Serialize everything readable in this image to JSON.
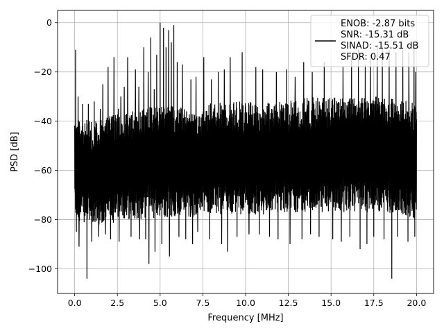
{
  "chart_data": {
    "type": "line",
    "xlabel": "Frequency [MHz]",
    "ylabel": "PSD [dB]",
    "xlim": [
      -1.0,
      21.0
    ],
    "ylim": [
      -110.0,
      5.0
    ],
    "x_ticks": [
      0.0,
      2.5,
      5.0,
      7.5,
      10.0,
      12.5,
      15.0,
      17.5,
      20.0
    ],
    "x_tick_labels": [
      "0.0",
      "2.5",
      "5.0",
      "7.5",
      "10.0",
      "12.5",
      "15.0",
      "17.5",
      "20.0"
    ],
    "y_ticks": [
      0,
      -20,
      -40,
      -60,
      -80,
      -100
    ],
    "y_tick_labels": [
      "0",
      "−20",
      "−40",
      "−60",
      "−80",
      "−100"
    ],
    "grid": true,
    "legend_placement": "top-right",
    "legend_lines": [
      "ENOB: -2.87 bits",
      "SNR: -15.31 dB",
      "SINAD: -15.51 dB",
      "SFDR: 0.47"
    ],
    "line_color": "#000000",
    "series": [
      {
        "noise_band": {
          "x": [
            0.0,
            1.0,
            2.0,
            3.0,
            4.0,
            5.0,
            6.0,
            7.0,
            7.4,
            8.0,
            9.0,
            10.0,
            11.0,
            12.0,
            13.0,
            14.0,
            15.0,
            16.0,
            17.0,
            18.0,
            19.0,
            20.0
          ],
          "upper": [
            -38,
            -40,
            -38,
            -36,
            -34,
            -33,
            -34,
            -36,
            -37,
            -32,
            -32,
            -32,
            -32,
            -31,
            -31,
            -30,
            -30,
            -30,
            -30,
            -30,
            -31,
            -33
          ],
          "lower": [
            -80,
            -82,
            -82,
            -80,
            -80,
            -79,
            -79,
            -79,
            -76,
            -78,
            -78,
            -78,
            -78,
            -77,
            -77,
            -77,
            -77,
            -77,
            -77,
            -77,
            -78,
            -80
          ]
        },
        "peaks": [
          {
            "x": 0.05,
            "y": -11
          },
          {
            "x": 0.2,
            "y": -30
          },
          {
            "x": 0.45,
            "y": -33
          },
          {
            "x": 0.8,
            "y": -33
          },
          {
            "x": 1.15,
            "y": -32
          },
          {
            "x": 1.5,
            "y": -35
          },
          {
            "x": 1.65,
            "y": -25
          },
          {
            "x": 1.95,
            "y": -18
          },
          {
            "x": 2.3,
            "y": -14
          },
          {
            "x": 2.55,
            "y": -35
          },
          {
            "x": 2.7,
            "y": -30
          },
          {
            "x": 2.9,
            "y": -26
          },
          {
            "x": 3.1,
            "y": -14
          },
          {
            "x": 3.3,
            "y": -24
          },
          {
            "x": 3.55,
            "y": -19
          },
          {
            "x": 3.75,
            "y": -26
          },
          {
            "x": 4.05,
            "y": -10
          },
          {
            "x": 4.3,
            "y": -20
          },
          {
            "x": 4.45,
            "y": -6
          },
          {
            "x": 4.65,
            "y": -27
          },
          {
            "x": 4.8,
            "y": -13
          },
          {
            "x": 5.0,
            "y": 0
          },
          {
            "x": 5.2,
            "y": -2
          },
          {
            "x": 5.35,
            "y": -10
          },
          {
            "x": 5.5,
            "y": -3
          },
          {
            "x": 5.65,
            "y": -8
          },
          {
            "x": 5.8,
            "y": -1
          },
          {
            "x": 6.0,
            "y": -16
          },
          {
            "x": 6.3,
            "y": -17
          },
          {
            "x": 6.5,
            "y": -20
          },
          {
            "x": 6.8,
            "y": -23
          },
          {
            "x": 7.1,
            "y": -22
          },
          {
            "x": 7.55,
            "y": -14
          },
          {
            "x": 8.0,
            "y": -23
          },
          {
            "x": 8.4,
            "y": -20
          },
          {
            "x": 8.75,
            "y": -19
          },
          {
            "x": 9.1,
            "y": -14
          },
          {
            "x": 9.5,
            "y": -18
          },
          {
            "x": 9.8,
            "y": -12
          },
          {
            "x": 10.2,
            "y": -20
          },
          {
            "x": 10.6,
            "y": -18
          },
          {
            "x": 11.0,
            "y": -19
          },
          {
            "x": 11.4,
            "y": -18
          },
          {
            "x": 11.8,
            "y": -20
          },
          {
            "x": 12.4,
            "y": -19
          },
          {
            "x": 12.9,
            "y": -22
          },
          {
            "x": 13.4,
            "y": -16
          },
          {
            "x": 13.9,
            "y": -20
          },
          {
            "x": 14.3,
            "y": -23
          },
          {
            "x": 14.6,
            "y": -16
          },
          {
            "x": 15.1,
            "y": -20
          },
          {
            "x": 15.7,
            "y": -18
          },
          {
            "x": 16.2,
            "y": -14
          },
          {
            "x": 16.6,
            "y": -11
          },
          {
            "x": 17.0,
            "y": -17
          },
          {
            "x": 17.3,
            "y": -13
          },
          {
            "x": 17.7,
            "y": -9
          },
          {
            "x": 18.0,
            "y": -10
          },
          {
            "x": 18.4,
            "y": -11
          },
          {
            "x": 18.8,
            "y": -12
          },
          {
            "x": 19.2,
            "y": -11
          },
          {
            "x": 19.55,
            "y": -12
          },
          {
            "x": 19.85,
            "y": -9
          },
          {
            "x": 19.95,
            "y": -20
          }
        ],
        "dips": [
          {
            "x": 0.1,
            "y": -85
          },
          {
            "x": 0.25,
            "y": -91
          },
          {
            "x": 0.72,
            "y": -104
          },
          {
            "x": 1.0,
            "y": -89
          },
          {
            "x": 1.4,
            "y": -87
          },
          {
            "x": 1.8,
            "y": -86
          },
          {
            "x": 2.1,
            "y": -88
          },
          {
            "x": 2.6,
            "y": -89
          },
          {
            "x": 3.3,
            "y": -87
          },
          {
            "x": 3.8,
            "y": -88
          },
          {
            "x": 4.15,
            "y": -88
          },
          {
            "x": 4.35,
            "y": -98
          },
          {
            "x": 4.7,
            "y": -93
          },
          {
            "x": 5.1,
            "y": -90
          },
          {
            "x": 5.55,
            "y": -95
          },
          {
            "x": 6.1,
            "y": -87
          },
          {
            "x": 6.5,
            "y": -88
          },
          {
            "x": 6.9,
            "y": -90
          },
          {
            "x": 7.2,
            "y": -85
          },
          {
            "x": 7.9,
            "y": -88
          },
          {
            "x": 8.6,
            "y": -90
          },
          {
            "x": 8.95,
            "y": -93
          },
          {
            "x": 9.5,
            "y": -87
          },
          {
            "x": 10.2,
            "y": -86
          },
          {
            "x": 10.8,
            "y": -86
          },
          {
            "x": 11.4,
            "y": -87
          },
          {
            "x": 11.9,
            "y": -88
          },
          {
            "x": 12.6,
            "y": -90
          },
          {
            "x": 13.3,
            "y": -88
          },
          {
            "x": 13.8,
            "y": -86
          },
          {
            "x": 14.3,
            "y": -87
          },
          {
            "x": 15.1,
            "y": -88
          },
          {
            "x": 15.6,
            "y": -89
          },
          {
            "x": 16.1,
            "y": -87
          },
          {
            "x": 16.7,
            "y": -92
          },
          {
            "x": 17.1,
            "y": -90
          },
          {
            "x": 17.5,
            "y": -87
          },
          {
            "x": 18.1,
            "y": -88
          },
          {
            "x": 18.55,
            "y": -104
          },
          {
            "x": 18.9,
            "y": -87
          },
          {
            "x": 19.5,
            "y": -89
          },
          {
            "x": 19.9,
            "y": -87
          }
        ]
      }
    ]
  }
}
